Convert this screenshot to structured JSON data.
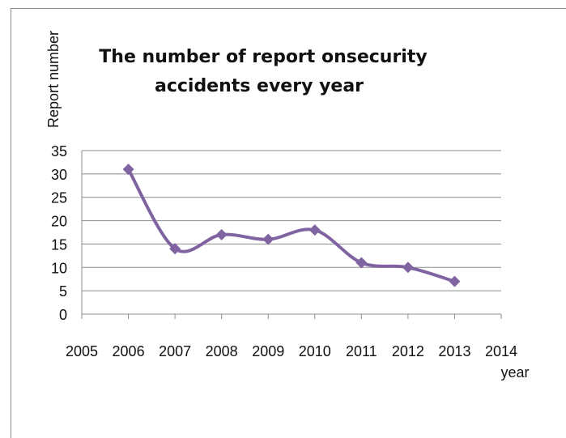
{
  "chart_data": {
    "type": "line",
    "title_lines": [
      "The number of report onsecurity",
      "accidents every year"
    ],
    "xlabel": "year",
    "ylabel": "Report number",
    "xlim": [
      2005,
      2014
    ],
    "ylim": [
      0,
      35
    ],
    "x_ticks": [
      2005,
      2006,
      2007,
      2008,
      2009,
      2010,
      2011,
      2012,
      2013,
      2014
    ],
    "y_ticks": [
      0,
      5,
      10,
      15,
      20,
      25,
      30,
      35
    ],
    "grid": true,
    "legend": "none",
    "series": [
      {
        "x": [
          2006,
          2007,
          2008,
          2009,
          2010,
          2011,
          2012,
          2013
        ],
        "values": [
          31,
          14,
          17,
          16,
          18,
          11,
          10,
          7
        ],
        "color": "#8064a2",
        "marker": "diamond",
        "smooth": true
      }
    ]
  }
}
